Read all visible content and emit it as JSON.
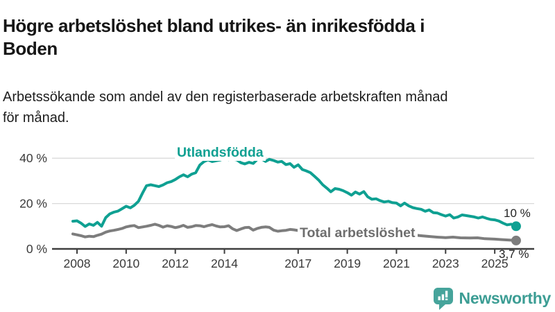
{
  "title": {
    "line1": "Högre arbetslöshet bland utrikes- än inrikesfödda i",
    "line2": "Boden"
  },
  "subtitle": {
    "line1": "Arbetssökande som andel av den registerbaserade arbetskraften månad",
    "line2": "för månad."
  },
  "colors": {
    "accent_teal": "#0FA092",
    "series_gray": "#7d7d7d",
    "grid": "#d9d9d9",
    "axis": "#3f3f3f",
    "text": "#161616",
    "logo_teal": "#46A49B"
  },
  "chart_data": {
    "type": "line",
    "title": "Högre arbetslöshet bland utrikes- än inrikesfödda i Boden",
    "subtitle": "Arbetssökande som andel av den registerbaserade arbetskraften månad för månad.",
    "xlabel": "",
    "ylabel": "",
    "ylim": [
      0,
      44
    ],
    "xlim": [
      2007.6,
      2026.3
    ],
    "grid": "horizontal",
    "legend_position": "inline-labels",
    "y_ticks": [
      {
        "value": 0,
        "label": "0 %"
      },
      {
        "value": 20,
        "label": "20 %"
      },
      {
        "value": 40,
        "label": "40 %"
      }
    ],
    "x_ticks": [
      {
        "year": 2008,
        "label": "2008"
      },
      {
        "year": 2010,
        "label": "2010"
      },
      {
        "year": 2012,
        "label": "2012"
      },
      {
        "year": 2014,
        "label": "2014"
      },
      {
        "year": 2017,
        "label": "2017"
      },
      {
        "year": 2019,
        "label": "2019"
      },
      {
        "year": 2021,
        "label": "2021"
      },
      {
        "year": 2023,
        "label": "2023"
      },
      {
        "year": 2025,
        "label": "2025"
      }
    ],
    "series": [
      {
        "name": "Utlandsfödda",
        "color": "#0FA092",
        "end_label": "10 %",
        "points": [
          [
            2007.83,
            12.2
          ],
          [
            2008.0,
            12.4
          ],
          [
            2008.17,
            11.3
          ],
          [
            2008.33,
            9.9
          ],
          [
            2008.5,
            11.0
          ],
          [
            2008.67,
            10.4
          ],
          [
            2008.83,
            11.7
          ],
          [
            2009.0,
            10.0
          ],
          [
            2009.17,
            13.8
          ],
          [
            2009.33,
            15.4
          ],
          [
            2009.5,
            16.2
          ],
          [
            2009.67,
            16.7
          ],
          [
            2009.83,
            17.7
          ],
          [
            2010.0,
            18.8
          ],
          [
            2010.17,
            18.1
          ],
          [
            2010.33,
            19.2
          ],
          [
            2010.5,
            21.0
          ],
          [
            2010.67,
            24.7
          ],
          [
            2010.83,
            27.9
          ],
          [
            2011.0,
            28.3
          ],
          [
            2011.17,
            27.9
          ],
          [
            2011.33,
            27.5
          ],
          [
            2011.5,
            28.2
          ],
          [
            2011.67,
            29.2
          ],
          [
            2011.83,
            29.7
          ],
          [
            2012.0,
            30.6
          ],
          [
            2012.17,
            31.8
          ],
          [
            2012.33,
            32.7
          ],
          [
            2012.5,
            31.8
          ],
          [
            2012.67,
            33.0
          ],
          [
            2012.83,
            33.6
          ],
          [
            2013.0,
            37.0
          ],
          [
            2013.17,
            38.5
          ],
          [
            2013.33,
            39.3
          ],
          [
            2013.5,
            38.5
          ],
          [
            2013.67,
            38.9
          ],
          [
            2013.83,
            39.2
          ],
          [
            2014.0,
            40.0
          ],
          [
            2014.17,
            39.4
          ],
          [
            2014.33,
            39.6
          ],
          [
            2014.5,
            39.3
          ],
          [
            2014.67,
            38.0
          ],
          [
            2014.83,
            37.5
          ],
          [
            2015.0,
            38.2
          ],
          [
            2015.17,
            37.7
          ],
          [
            2015.33,
            39.4
          ],
          [
            2015.5,
            39.8
          ],
          [
            2015.67,
            38.6
          ],
          [
            2015.83,
            39.5
          ],
          [
            2016.0,
            39.0
          ],
          [
            2016.17,
            38.3
          ],
          [
            2016.33,
            38.6
          ],
          [
            2016.5,
            37.2
          ],
          [
            2016.67,
            37.6
          ],
          [
            2016.83,
            36.0
          ],
          [
            2017.0,
            37.1
          ],
          [
            2017.17,
            35.0
          ],
          [
            2017.33,
            34.4
          ],
          [
            2017.5,
            33.6
          ],
          [
            2017.67,
            32.0
          ],
          [
            2017.83,
            30.4
          ],
          [
            2018.0,
            28.3
          ],
          [
            2018.17,
            26.8
          ],
          [
            2018.33,
            25.2
          ],
          [
            2018.5,
            26.6
          ],
          [
            2018.67,
            26.3
          ],
          [
            2018.83,
            25.7
          ],
          [
            2019.0,
            24.8
          ],
          [
            2019.17,
            23.7
          ],
          [
            2019.33,
            25.1
          ],
          [
            2019.5,
            24.2
          ],
          [
            2019.67,
            25.3
          ],
          [
            2019.83,
            23.0
          ],
          [
            2020.0,
            21.9
          ],
          [
            2020.17,
            22.1
          ],
          [
            2020.33,
            21.3
          ],
          [
            2020.5,
            20.7
          ],
          [
            2020.67,
            21.0
          ],
          [
            2020.83,
            20.4
          ],
          [
            2021.0,
            20.2
          ],
          [
            2021.17,
            19.0
          ],
          [
            2021.33,
            20.2
          ],
          [
            2021.5,
            19.0
          ],
          [
            2021.67,
            18.2
          ],
          [
            2021.83,
            17.8
          ],
          [
            2022.0,
            17.5
          ],
          [
            2022.17,
            16.6
          ],
          [
            2022.33,
            17.2
          ],
          [
            2022.5,
            16.0
          ],
          [
            2022.67,
            15.8
          ],
          [
            2022.83,
            15.1
          ],
          [
            2023.0,
            14.5
          ],
          [
            2023.17,
            15.1
          ],
          [
            2023.33,
            13.6
          ],
          [
            2023.5,
            14.1
          ],
          [
            2023.67,
            15.0
          ],
          [
            2023.83,
            14.7
          ],
          [
            2024.0,
            14.4
          ],
          [
            2024.17,
            14.1
          ],
          [
            2024.33,
            13.6
          ],
          [
            2024.5,
            14.1
          ],
          [
            2024.67,
            13.5
          ],
          [
            2024.83,
            13.0
          ],
          [
            2025.0,
            12.8
          ],
          [
            2025.17,
            12.3
          ],
          [
            2025.33,
            11.4
          ],
          [
            2025.5,
            10.6
          ],
          [
            2025.67,
            10.9
          ],
          [
            2025.87,
            10.0
          ]
        ]
      },
      {
        "name": "Total arbetslöshet",
        "color": "#7d7d7d",
        "end_label": "3,7 %",
        "points": [
          [
            2007.83,
            6.6
          ],
          [
            2008.0,
            6.2
          ],
          [
            2008.17,
            5.8
          ],
          [
            2008.33,
            5.3
          ],
          [
            2008.5,
            5.6
          ],
          [
            2008.67,
            5.4
          ],
          [
            2008.83,
            6.0
          ],
          [
            2009.0,
            6.5
          ],
          [
            2009.17,
            7.4
          ],
          [
            2009.33,
            7.9
          ],
          [
            2009.5,
            8.2
          ],
          [
            2009.67,
            8.6
          ],
          [
            2009.83,
            9.0
          ],
          [
            2010.0,
            9.7
          ],
          [
            2010.17,
            10.1
          ],
          [
            2010.33,
            10.3
          ],
          [
            2010.5,
            9.4
          ],
          [
            2010.67,
            9.7
          ],
          [
            2010.83,
            10.0
          ],
          [
            2011.0,
            10.4
          ],
          [
            2011.17,
            10.9
          ],
          [
            2011.33,
            10.4
          ],
          [
            2011.5,
            9.6
          ],
          [
            2011.67,
            10.2
          ],
          [
            2011.83,
            9.9
          ],
          [
            2012.0,
            9.4
          ],
          [
            2012.17,
            9.8
          ],
          [
            2012.33,
            10.4
          ],
          [
            2012.5,
            9.5
          ],
          [
            2012.67,
            9.8
          ],
          [
            2012.83,
            10.3
          ],
          [
            2013.0,
            10.2
          ],
          [
            2013.17,
            9.8
          ],
          [
            2013.33,
            10.3
          ],
          [
            2013.5,
            10.7
          ],
          [
            2013.67,
            10.1
          ],
          [
            2013.83,
            9.7
          ],
          [
            2014.0,
            9.8
          ],
          [
            2014.17,
            10.2
          ],
          [
            2014.33,
            8.9
          ],
          [
            2014.5,
            8.1
          ],
          [
            2014.67,
            8.8
          ],
          [
            2014.83,
            9.4
          ],
          [
            2015.0,
            9.5
          ],
          [
            2015.17,
            8.3
          ],
          [
            2015.33,
            9.0
          ],
          [
            2015.5,
            9.5
          ],
          [
            2015.67,
            9.7
          ],
          [
            2015.83,
            9.5
          ],
          [
            2016.0,
            8.3
          ],
          [
            2016.17,
            7.8
          ],
          [
            2016.33,
            8.0
          ],
          [
            2016.5,
            8.2
          ],
          [
            2016.67,
            8.6
          ],
          [
            2016.83,
            8.4
          ],
          [
            2017.0,
            8.1
          ],
          [
            2017.25,
            8.3
          ],
          [
            2017.5,
            8.1
          ],
          [
            2017.75,
            7.9
          ],
          [
            2018.0,
            7.7
          ],
          [
            2018.5,
            7.5
          ],
          [
            2019.0,
            7.3
          ],
          [
            2019.5,
            7.2
          ],
          [
            2020.0,
            7.5
          ],
          [
            2020.4,
            7.9
          ],
          [
            2021.0,
            7.1
          ],
          [
            2021.5,
            6.4
          ],
          [
            2022.0,
            5.8
          ],
          [
            2022.4,
            5.4
          ],
          [
            2022.65,
            5.2
          ],
          [
            2023.0,
            5.0
          ],
          [
            2023.3,
            5.2
          ],
          [
            2023.6,
            4.9
          ],
          [
            2024.0,
            4.8
          ],
          [
            2024.3,
            4.9
          ],
          [
            2024.6,
            4.5
          ],
          [
            2025.0,
            4.3
          ],
          [
            2025.3,
            4.1
          ],
          [
            2025.6,
            3.9
          ],
          [
            2025.87,
            3.7
          ]
        ]
      }
    ]
  },
  "logo": {
    "text": "Newsworthy"
  }
}
